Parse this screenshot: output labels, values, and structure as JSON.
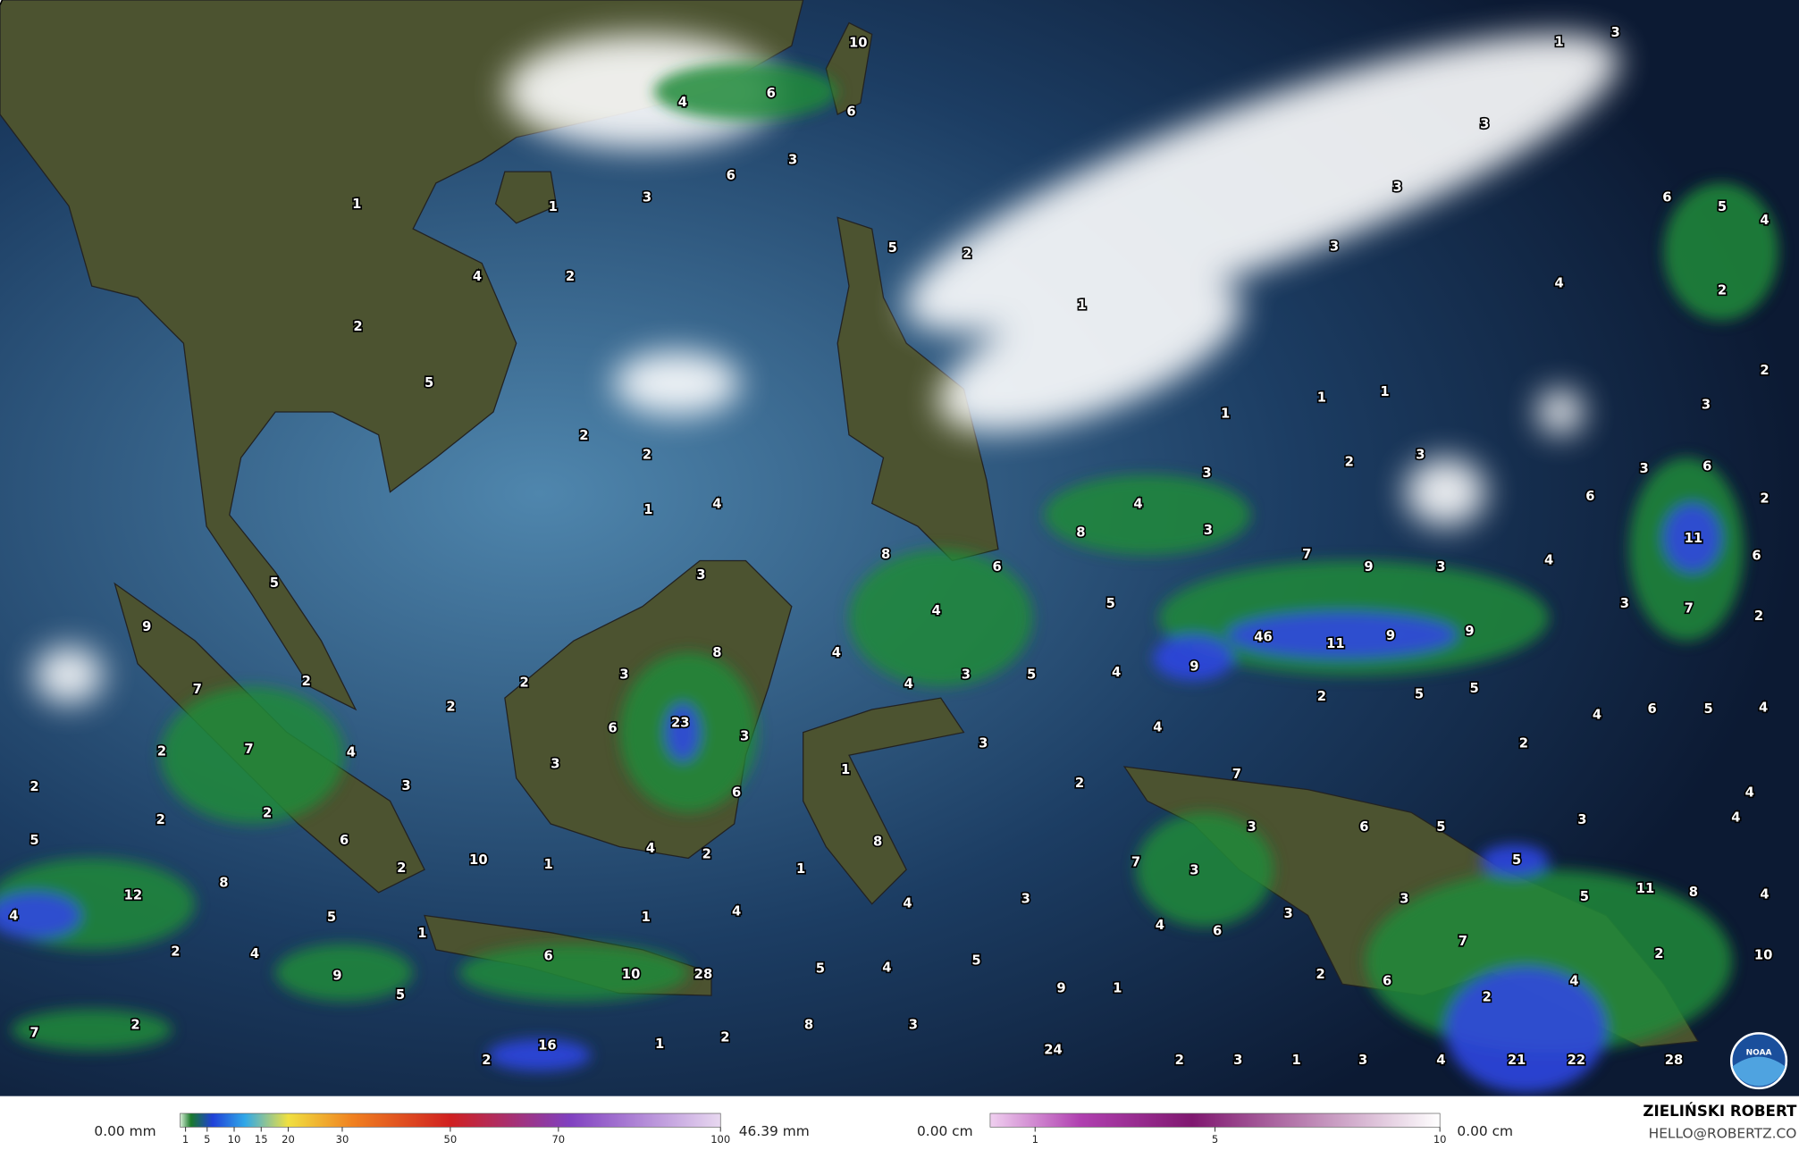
{
  "map_labels": [
    10,
    6,
    4,
    6,
    3,
    6,
    3,
    1,
    1,
    5,
    2,
    2,
    4,
    1,
    2,
    5,
    2,
    2,
    4,
    1,
    1,
    3,
    3,
    3,
    3,
    4,
    6,
    5,
    4,
    2,
    2,
    3,
    1,
    1,
    1,
    2,
    3,
    3,
    4,
    3,
    8,
    3,
    6,
    6,
    2,
    11,
    6,
    4,
    3,
    7,
    2,
    7,
    9,
    3,
    5,
    6,
    8,
    4,
    46,
    11,
    9,
    9,
    9,
    3,
    9,
    5,
    7,
    4,
    8,
    3,
    2,
    4,
    3,
    5,
    4,
    2,
    5,
    5,
    4,
    6,
    5,
    4,
    2,
    2,
    6,
    23,
    3,
    4,
    3,
    2,
    2,
    7,
    4,
    3,
    1,
    2,
    3,
    6,
    2,
    7,
    4,
    2,
    2,
    5,
    6,
    4,
    2,
    8,
    6,
    5,
    3,
    3,
    4,
    2,
    10,
    1,
    1,
    7,
    3,
    5,
    11,
    5,
    8,
    4,
    4,
    12,
    8,
    5,
    4,
    3,
    3,
    3,
    6,
    4,
    4,
    1,
    2,
    4,
    1,
    6,
    7,
    2,
    10,
    10,
    28,
    5,
    4,
    5,
    2,
    6,
    4,
    2,
    9,
    5,
    9,
    1,
    2,
    7,
    8,
    3,
    2,
    1,
    2,
    16,
    24,
    2,
    3,
    1,
    3,
    4,
    21,
    22,
    28,
    7
  ],
  "legend": {
    "rain": {
      "min_label": "0.00 mm",
      "max_label": "46.39 mm",
      "lim": [
        0,
        100
      ],
      "ticks": [
        1,
        5,
        10,
        15,
        20,
        30,
        50,
        70,
        100
      ]
    },
    "snow": {
      "min_label": "0.00 cm",
      "max_label": "0.00 cm",
      "lim": [
        0,
        10
      ],
      "ticks": [
        1,
        5,
        10
      ]
    }
  },
  "credit": {
    "name": "ZIELIŃSKI ROBERT",
    "email": "HELLO@ROBERTZ.CO"
  },
  "logo": "NOAA"
}
